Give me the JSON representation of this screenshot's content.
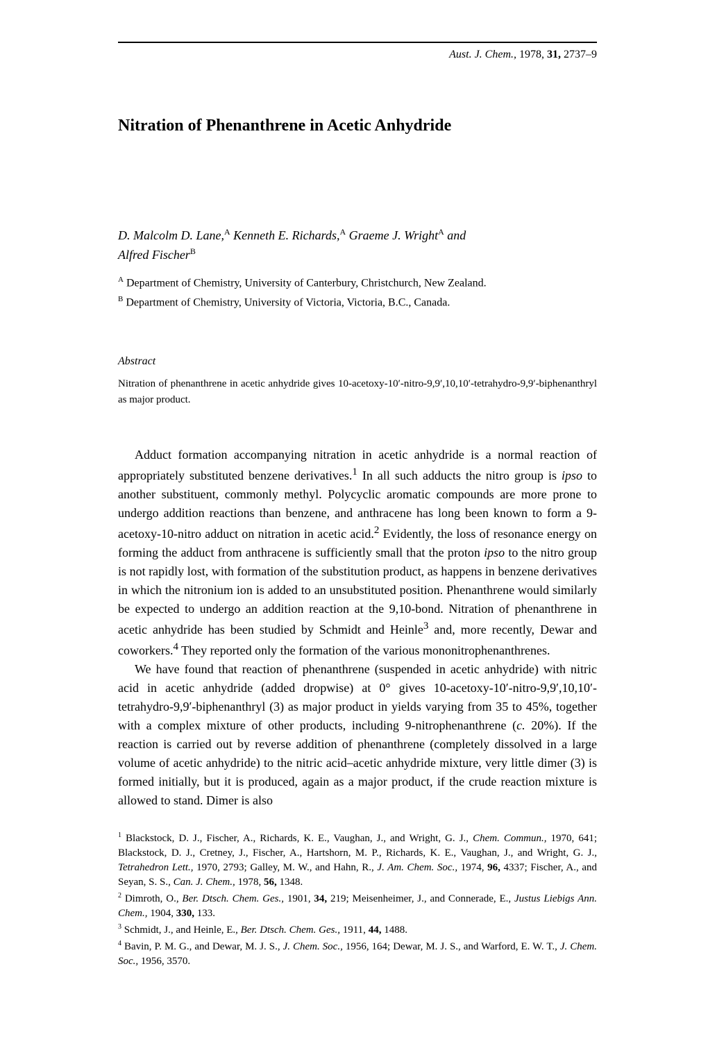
{
  "journalRef": {
    "name": "Aust. J. Chem.,",
    "year": "1978,",
    "volume": "31,",
    "pages": "2737–9"
  },
  "title": "Nitration of Phenanthrene in Acetic Anhydride",
  "authorsLine1": "D. Malcolm D. Lane,",
  "authorsSupA1": "A",
  "authorsName2": " Kenneth E. Richards,",
  "authorsSupA2": "A",
  "authorsName3": " Graeme J. Wright",
  "authorsSupA3": "A",
  "authorsAnd": " and",
  "authorsLine2": "Alfred Fischer",
  "authorsSupB": "B",
  "affilA": " Department of Chemistry, University of Canterbury, Christchurch, New Zealand.",
  "affilB": " Department of Chemistry, University of Victoria, Victoria, B.C., Canada.",
  "abstractHeading": "Abstract",
  "abstractText": "Nitration of phenanthrene in acetic anhydride gives 10-acetoxy-10′-nitro-9,9′,10,10′-tetrahydro-9,9′-biphenanthryl as major product.",
  "para1a": "Adduct formation accompanying nitration in acetic anhydride is a normal reaction of appropriately substituted benzene derivatives.",
  "para1b": " In all such adducts the nitro group is ",
  "ipso1": "ipso",
  "para1c": " to another substituent, commonly methyl. Polycyclic aromatic compounds are more prone to undergo addition reactions than benzene, and anthracene has long been known to form a 9-acetoxy-10-nitro adduct on nitration in acetic acid.",
  "para1d": " Evidently, the loss of resonance energy on forming the adduct from anthracene is sufficiently small that the proton ",
  "ipso2": "ipso",
  "para1e": " to the nitro group is not rapidly lost, with formation of the substitution product, as happens in benzene derivatives in which the nitronium ion is added to an unsubstituted position. Phenanthrene would similarly be expected to undergo an addition reaction at the 9,10-bond. Nitration of phenanthrene in acetic anhydride has been studied by Schmidt and Heinle",
  "para1f": " and, more recently, Dewar and coworkers.",
  "para1g": " They reported only the formation of the various mononitrophenanthrenes.",
  "para2a": "We have found that reaction of phenanthrene (suspended in acetic anhydride) with nitric acid in acetic anhydride (added dropwise) at 0° gives 10-acetoxy-10′-nitro-9,9′,10,10′-tetrahydro-9,9′-biphenanthryl (3) as major product in yields varying from 35 to 45%, together with a complex mixture of other products, including 9-nitrophenanthrene (",
  "cval": "c.",
  "para2b": " 20%). If the reaction is carried out by reverse addition of phenanthrene (completely dissolved in a large volume of acetic anhydride) to the nitric acid–acetic anhydride mixture, very little dimer (3) is formed initially, but it is produced, again as a major product, if the crude reaction mixture is allowed to stand. Dimer is also",
  "fn1a": " Blackstock, D. J., Fischer, A., Richards, K. E., Vaughan, J., and Wright, G. J., ",
  "fn1j1": "Chem. Commun.,",
  "fn1b": " 1970, 641; Blackstock, D. J., Cretney, J., Fischer, A., Hartshorn, M. P., Richards, K. E., Vaughan, J., and Wright, G. J., ",
  "fn1j2": "Tetrahedron Lett.,",
  "fn1c": " 1970, 2793; Galley, M. W., and Hahn, R., ",
  "fn1j3": "J. Am. Chem. Soc.,",
  "fn1d": " 1974, ",
  "fn1v1": "96,",
  "fn1e": " 4337; Fischer, A., and Seyan, S. S., ",
  "fn1j4": "Can. J. Chem.,",
  "fn1f": " 1978, ",
  "fn1v2": "56,",
  "fn1g": " 1348.",
  "fn2a": " Dimroth, O., ",
  "fn2j1": "Ber. Dtsch. Chem. Ges.,",
  "fn2b": " 1901, ",
  "fn2v1": "34,",
  "fn2c": " 219; Meisenheimer, J., and Connerade, E., ",
  "fn2j2": "Justus Liebigs Ann. Chem.,",
  "fn2d": " 1904, ",
  "fn2v2": "330,",
  "fn2e": " 133.",
  "fn3a": " Schmidt, J., and Heinle, E., ",
  "fn3j1": "Ber. Dtsch. Chem. Ges.,",
  "fn3b": " 1911, ",
  "fn3v1": "44,",
  "fn3c": " 1488.",
  "fn4a": " Bavin, P. M. G., and Dewar, M. J. S., ",
  "fn4j1": "J. Chem. Soc.,",
  "fn4b": " 1956, 164; Dewar, M. J. S., and Warford, E. W. T., ",
  "fn4j2": "J. Chem. Soc.,",
  "fn4c": " 1956, 3570.",
  "sup1": "1",
  "sup2": "2",
  "sup3": "3",
  "sup4": "4",
  "supA": "A",
  "supB": "B"
}
